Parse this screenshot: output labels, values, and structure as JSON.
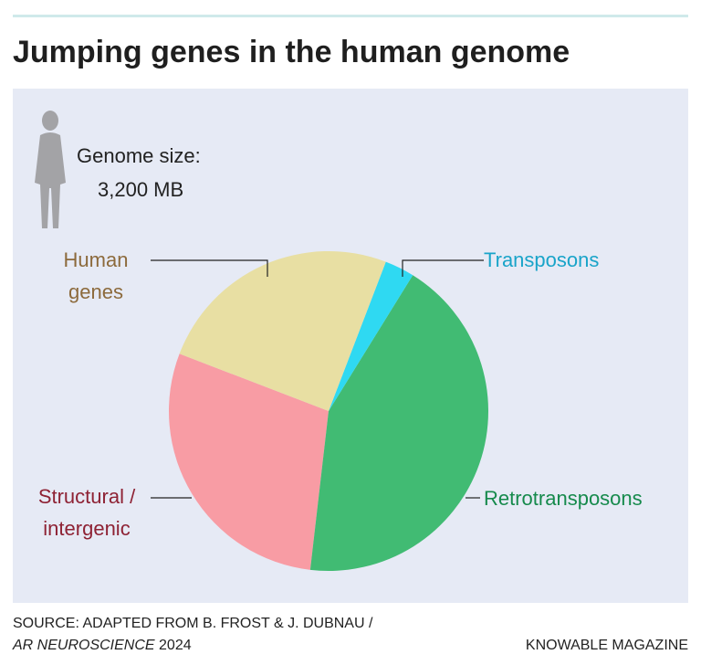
{
  "chart_data": {
    "type": "pie",
    "title": "Jumping genes in the human genome",
    "annotation": {
      "label": "Genome size:",
      "value": "3,200 MB"
    },
    "categories": [
      "Human genes",
      "Transposons",
      "Retrotransposons",
      "Structural / intergenic"
    ],
    "values": [
      25,
      3,
      43,
      29
    ],
    "colors": [
      "#e8dfa3",
      "#2fd9f2",
      "#41bb73",
      "#f89ca4"
    ],
    "label_colors": [
      "#8c6a3c",
      "#19a4c9",
      "#168a4c",
      "#8e2234"
    ],
    "source": [
      "SOURCE: ADAPTED FROM B. FROST & J. DUBNAU /",
      "AR NEUROSCIENCE",
      "2024"
    ],
    "credit": "KNOWABLE MAGAZINE"
  }
}
